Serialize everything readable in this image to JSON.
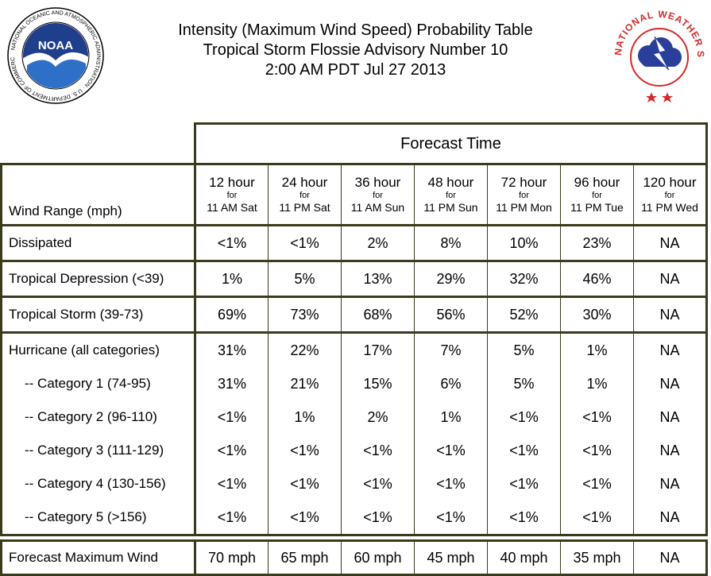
{
  "header": {
    "title_line1": "Intensity (Maximum Wind Speed) Probability Table",
    "title_line2": "Tropical Storm Flossie Advisory Number 10",
    "title_line3": "2:00 AM PDT Jul 27 2013",
    "noaa_logo_text": "NOAA",
    "noaa_ring_text": "NATIONAL OCEANIC AND ATMOSPHERIC ADMINISTRATION · U.S. DEPARTMENT OF COMMERCE",
    "nws_ring_text": "NATIONAL WEATHER SERVICE"
  },
  "table": {
    "forecast_time_label": "Forecast Time",
    "row_header_label": "Wind Range (mph)",
    "columns": [
      {
        "hour": "12 hour",
        "for": "for",
        "when": "11 AM Sat"
      },
      {
        "hour": "24 hour",
        "for": "for",
        "when": "11 PM Sat"
      },
      {
        "hour": "36 hour",
        "for": "for",
        "when": "11 AM Sun"
      },
      {
        "hour": "48 hour",
        "for": "for",
        "when": "11 PM Sun"
      },
      {
        "hour": "72 hour",
        "for": "for",
        "when": "11 PM Mon"
      },
      {
        "hour": "96 hour",
        "for": "for",
        "when": "11 PM Tue"
      },
      {
        "hour": "120 hour",
        "for": "for",
        "when": "11 PM Wed"
      }
    ],
    "rows": [
      {
        "label": "Dissipated",
        "values": [
          "<1%",
          "<1%",
          "2%",
          "8%",
          "10%",
          "23%",
          "NA"
        ]
      },
      {
        "label": "Tropical Depression (<39)",
        "values": [
          "1%",
          "5%",
          "13%",
          "29%",
          "32%",
          "46%",
          "NA"
        ]
      },
      {
        "label": "Tropical Storm (39-73)",
        "values": [
          "69%",
          "73%",
          "68%",
          "56%",
          "52%",
          "30%",
          "NA"
        ]
      },
      {
        "label": "Hurricane (all categories)",
        "values": [
          "31%",
          "22%",
          "17%",
          "7%",
          "5%",
          "1%",
          "NA"
        ]
      },
      {
        "label": "-- Category 1 (74-95)",
        "values": [
          "31%",
          "21%",
          "15%",
          "6%",
          "5%",
          "1%",
          "NA"
        ]
      },
      {
        "label": "-- Category 2 (96-110)",
        "values": [
          "<1%",
          "1%",
          "2%",
          "1%",
          "<1%",
          "<1%",
          "NA"
        ]
      },
      {
        "label": "-- Category 3 (111-129)",
        "values": [
          "<1%",
          "<1%",
          "<1%",
          "<1%",
          "<1%",
          "<1%",
          "NA"
        ]
      },
      {
        "label": "-- Category 4 (130-156)",
        "values": [
          "<1%",
          "<1%",
          "<1%",
          "<1%",
          "<1%",
          "<1%",
          "NA"
        ]
      },
      {
        "label": "-- Category 5 (>156)",
        "values": [
          "<1%",
          "<1%",
          "<1%",
          "<1%",
          "<1%",
          "<1%",
          "NA"
        ]
      }
    ],
    "max_wind": {
      "label": "Forecast Maximum Wind",
      "values": [
        "70 mph",
        "65 mph",
        "60 mph",
        "45 mph",
        "40 mph",
        "35 mph",
        "NA"
      ]
    }
  },
  "colors": {
    "border": "#3b3a1c",
    "noaa_blue": "#1f3f8c",
    "nws_red": "#d42a2a",
    "nws_blue": "#2a3f9a"
  }
}
